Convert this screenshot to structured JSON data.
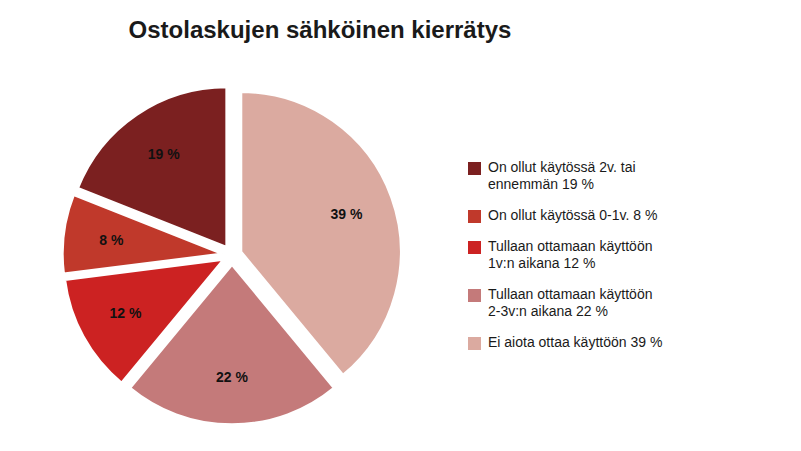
{
  "chart_data": {
    "type": "pie",
    "title": "Ostolaskujen sähköinen kierrätys",
    "categories": [
      "On ollut käytössä 2v. tai\nennemmän 19 %",
      "On ollut käytössä 0-1v. 8 %",
      "Tullaan ottamaan käyttöön\n1v:n aikana 12 %",
      "Tullaan ottamaan käyttöön\n2-3v:n aikana 22 %",
      "Ei aiota ottaa käyttöön 39 %"
    ],
    "values": [
      19,
      8,
      12,
      22,
      39
    ],
    "value_labels": [
      "19 %",
      "8 %",
      "12 %",
      "22 %",
      "39 %"
    ],
    "colors": [
      "#7B2020",
      "#C0392B",
      "#CC2222",
      "#C47A7A",
      "#DBAAA0"
    ],
    "data_labels": true,
    "legend": "right"
  }
}
